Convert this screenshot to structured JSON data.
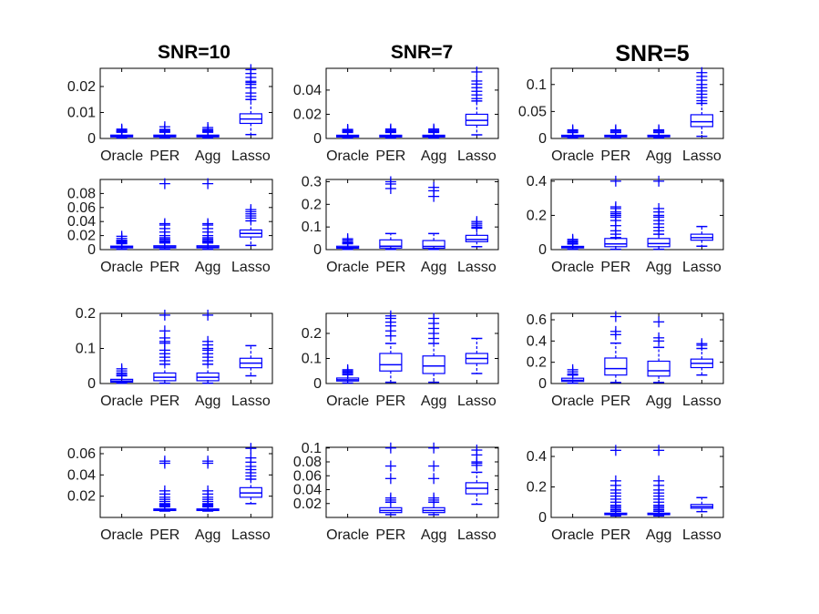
{
  "column_titles": [
    "SNR=10",
    "SNR=7",
    "SNR=5"
  ],
  "colors": {
    "box": "#0000ff",
    "axis": "#000000"
  },
  "chart_data": {
    "type": "box",
    "layout": "4x3 grid",
    "categories": [
      "Oracle",
      "PER",
      "Agg",
      "Lasso"
    ],
    "panels": [
      {
        "row": 0,
        "col": 0,
        "ylim": [
          0,
          0.027
        ],
        "yticks": [
          0,
          0.01,
          0.02
        ],
        "ytick_labels": [
          "0",
          "0.01",
          "0.02"
        ],
        "boxes": [
          {
            "q1": 0.0006,
            "median": 0.0009,
            "q3": 0.0013,
            "wlo": 0.0002,
            "whi": 0.0024,
            "outliers": [
              0.0026,
              0.0029,
              0.0032,
              0.0036
            ]
          },
          {
            "q1": 0.0006,
            "median": 0.0009,
            "q3": 0.0013,
            "wlo": 0.0002,
            "whi": 0.0024,
            "outliers": [
              0.0027,
              0.0031,
              0.0035,
              0.0045
            ]
          },
          {
            "q1": 0.0006,
            "median": 0.0009,
            "q3": 0.0013,
            "wlo": 0.0002,
            "whi": 0.0024,
            "outliers": [
              0.0027,
              0.0031,
              0.0035,
              0.0042
            ]
          },
          {
            "q1": 0.0058,
            "median": 0.0075,
            "q3": 0.0095,
            "wlo": 0.0015,
            "whi": 0.015,
            "outliers": [
              0.0162,
              0.0175,
              0.0195,
              0.0208,
              0.0215,
              0.022,
              0.0235,
              0.025,
              0.0265
            ]
          }
        ]
      },
      {
        "row": 0,
        "col": 1,
        "ylim": [
          0,
          0.058
        ],
        "yticks": [
          0,
          0.02,
          0.04
        ],
        "ytick_labels": [
          "0",
          "0.02",
          "0.04"
        ],
        "boxes": [
          {
            "q1": 0.0012,
            "median": 0.0018,
            "q3": 0.0027,
            "wlo": 0.0004,
            "whi": 0.005,
            "outliers": [
              0.0056,
              0.0062,
              0.0068,
              0.0075
            ]
          },
          {
            "q1": 0.0012,
            "median": 0.0018,
            "q3": 0.0027,
            "wlo": 0.0004,
            "whi": 0.005,
            "outliers": [
              0.0056,
              0.0062,
              0.0068,
              0.0078
            ]
          },
          {
            "q1": 0.0012,
            "median": 0.0018,
            "q3": 0.0027,
            "wlo": 0.0004,
            "whi": 0.005,
            "outliers": [
              0.0056,
              0.0062,
              0.0068,
              0.0078
            ]
          },
          {
            "q1": 0.011,
            "median": 0.015,
            "q3": 0.02,
            "wlo": 0.003,
            "whi": 0.031,
            "outliers": [
              0.033,
              0.036,
              0.039,
              0.042,
              0.045,
              0.0475,
              0.055
            ]
          }
        ]
      },
      {
        "row": 0,
        "col": 2,
        "ylim": [
          0,
          0.13
        ],
        "yticks": [
          0,
          0.05,
          0.1
        ],
        "ytick_labels": [
          "0",
          "0.05",
          "0.1"
        ],
        "boxes": [
          {
            "q1": 0.003,
            "median": 0.004,
            "q3": 0.006,
            "wlo": 0.001,
            "whi": 0.011,
            "outliers": [
              0.012,
              0.014,
              0.016
            ]
          },
          {
            "q1": 0.003,
            "median": 0.004,
            "q3": 0.006,
            "wlo": 0.001,
            "whi": 0.011,
            "outliers": [
              0.012,
              0.014,
              0.016
            ]
          },
          {
            "q1": 0.003,
            "median": 0.004,
            "q3": 0.006,
            "wlo": 0.001,
            "whi": 0.011,
            "outliers": [
              0.012,
              0.014,
              0.016
            ]
          },
          {
            "q1": 0.022,
            "median": 0.031,
            "q3": 0.044,
            "wlo": 0.004,
            "whi": 0.065,
            "outliers": [
              0.07,
              0.076,
              0.082,
              0.088,
              0.094,
              0.1,
              0.108,
              0.115,
              0.122
            ]
          }
        ]
      },
      {
        "row": 1,
        "col": 0,
        "ylim": [
          0,
          0.1
        ],
        "yticks": [
          0,
          0.02,
          0.04,
          0.06,
          0.08
        ],
        "ytick_labels": [
          "0",
          "0.02",
          "0.04",
          "0.06",
          "0.08"
        ],
        "boxes": [
          {
            "q1": 0.0025,
            "median": 0.0035,
            "q3": 0.005,
            "wlo": 0.0005,
            "whi": 0.0085,
            "outliers": [
              0.0095,
              0.0105,
              0.0115,
              0.0125,
              0.0135,
              0.016,
              0.019
            ]
          },
          {
            "q1": 0.0025,
            "median": 0.0037,
            "q3": 0.0055,
            "wlo": 0.0005,
            "whi": 0.0095,
            "outliers": [
              0.011,
              0.012,
              0.013,
              0.015,
              0.017,
              0.02,
              0.025,
              0.03,
              0.035,
              0.037,
              0.094
            ]
          },
          {
            "q1": 0.0025,
            "median": 0.0037,
            "q3": 0.0055,
            "wlo": 0.0005,
            "whi": 0.0095,
            "outliers": [
              0.011,
              0.012,
              0.013,
              0.015,
              0.017,
              0.02,
              0.025,
              0.03,
              0.035,
              0.037,
              0.094
            ]
          },
          {
            "q1": 0.018,
            "median": 0.023,
            "q3": 0.028,
            "wlo": 0.006,
            "whi": 0.041,
            "outliers": [
              0.045,
              0.048,
              0.051,
              0.054,
              0.057
            ]
          }
        ]
      },
      {
        "row": 1,
        "col": 1,
        "ylim": [
          0,
          0.31
        ],
        "yticks": [
          0,
          0.1,
          0.2,
          0.3
        ],
        "ytick_labels": [
          "0",
          "0.1",
          "0.2",
          "0.3"
        ],
        "boxes": [
          {
            "q1": 0.006,
            "median": 0.009,
            "q3": 0.015,
            "wlo": 0.001,
            "whi": 0.026,
            "outliers": [
              0.03,
              0.035,
              0.042,
              0.048
            ]
          },
          {
            "q1": 0.007,
            "median": 0.015,
            "q3": 0.043,
            "wlo": 0.001,
            "whi": 0.071,
            "outliers": [
              0.27,
              0.29,
              0.3
            ]
          },
          {
            "q1": 0.006,
            "median": 0.014,
            "q3": 0.04,
            "wlo": 0.001,
            "whi": 0.071,
            "outliers": [
              0.235,
              0.26,
              0.275
            ]
          },
          {
            "q1": 0.035,
            "median": 0.045,
            "q3": 0.063,
            "wlo": 0.013,
            "whi": 0.095,
            "outliers": [
              0.1,
              0.108,
              0.116,
              0.124
            ]
          }
        ]
      },
      {
        "row": 1,
        "col": 2,
        "ylim": [
          0,
          0.41
        ],
        "yticks": [
          0,
          0.2,
          0.4
        ],
        "ytick_labels": [
          "0",
          "0.2",
          "0.4"
        ],
        "boxes": [
          {
            "q1": 0.01,
            "median": 0.013,
            "q3": 0.019,
            "wlo": 0.002,
            "whi": 0.033,
            "outliers": [
              0.038,
              0.045,
              0.052,
              0.06
            ]
          },
          {
            "q1": 0.017,
            "median": 0.033,
            "q3": 0.065,
            "wlo": 0.002,
            "whi": 0.07,
            "outliers": [
              0.09,
              0.11,
              0.14,
              0.17,
              0.19,
              0.2,
              0.21,
              0.22,
              0.24,
              0.25,
              0.4
            ]
          },
          {
            "q1": 0.017,
            "median": 0.035,
            "q3": 0.065,
            "wlo": 0.002,
            "whi": 0.09,
            "outliers": [
              0.11,
              0.13,
              0.15,
              0.17,
              0.19,
              0.2,
              0.22,
              0.24,
              0.4
            ]
          },
          {
            "q1": 0.055,
            "median": 0.07,
            "q3": 0.09,
            "wlo": 0.02,
            "whi": 0.135,
            "outliers": []
          }
        ]
      },
      {
        "row": 2,
        "col": 0,
        "ylim": [
          0,
          0.2
        ],
        "yticks": [
          0,
          0.1,
          0.2
        ],
        "ytick_labels": [
          "0",
          "0.1",
          "0.2"
        ],
        "boxes": [
          {
            "q1": 0.004,
            "median": 0.007,
            "q3": 0.012,
            "wlo": 0.001,
            "whi": 0.022,
            "outliers": [
              0.026,
              0.03,
              0.036,
              0.042
            ]
          },
          {
            "q1": 0.008,
            "median": 0.018,
            "q3": 0.03,
            "wlo": 0.001,
            "whi": 0.055,
            "outliers": [
              0.065,
              0.075,
              0.085,
              0.095,
              0.115,
              0.12,
              0.13,
              0.15,
              0.195
            ]
          },
          {
            "q1": 0.008,
            "median": 0.018,
            "q3": 0.03,
            "wlo": 0.001,
            "whi": 0.055,
            "outliers": [
              0.065,
              0.075,
              0.085,
              0.095,
              0.1,
              0.11,
              0.12,
              0.195
            ]
          },
          {
            "q1": 0.045,
            "median": 0.058,
            "q3": 0.072,
            "wlo": 0.022,
            "whi": 0.108,
            "outliers": []
          }
        ]
      },
      {
        "row": 2,
        "col": 1,
        "ylim": [
          0,
          0.28
        ],
        "yticks": [
          0,
          0.1,
          0.2
        ],
        "ytick_labels": [
          "0",
          "0.1",
          "0.2"
        ],
        "boxes": [
          {
            "q1": 0.01,
            "median": 0.015,
            "q3": 0.022,
            "wlo": 0.002,
            "whi": 0.035,
            "outliers": [
              0.04,
              0.045,
              0.05,
              0.055
            ]
          },
          {
            "q1": 0.05,
            "median": 0.075,
            "q3": 0.12,
            "wlo": 0.005,
            "whi": 0.16,
            "outliers": [
              0.19,
              0.21,
              0.23,
              0.245,
              0.26,
              0.27
            ]
          },
          {
            "q1": 0.04,
            "median": 0.07,
            "q3": 0.11,
            "wlo": 0.005,
            "whi": 0.16,
            "outliers": [
              0.18,
              0.2,
              0.22,
              0.24,
              0.26
            ]
          },
          {
            "q1": 0.08,
            "median": 0.1,
            "q3": 0.12,
            "wlo": 0.04,
            "whi": 0.18,
            "outliers": []
          }
        ]
      },
      {
        "row": 2,
        "col": 2,
        "ylim": [
          0,
          0.66
        ],
        "yticks": [
          0,
          0.2,
          0.4,
          0.6
        ],
        "ytick_labels": [
          "0",
          "0.2",
          "0.4",
          "0.6"
        ],
        "boxes": [
          {
            "q1": 0.02,
            "median": 0.03,
            "q3": 0.05,
            "wlo": 0.003,
            "whi": 0.08,
            "outliers": [
              0.09,
              0.11,
              0.13
            ]
          },
          {
            "q1": 0.08,
            "median": 0.14,
            "q3": 0.24,
            "wlo": 0.01,
            "whi": 0.38,
            "outliers": [
              0.46,
              0.49,
              0.63
            ]
          },
          {
            "q1": 0.07,
            "median": 0.12,
            "q3": 0.21,
            "wlo": 0.01,
            "whi": 0.34,
            "outliers": [
              0.4,
              0.43,
              0.58
            ]
          },
          {
            "q1": 0.15,
            "median": 0.19,
            "q3": 0.23,
            "wlo": 0.08,
            "whi": 0.33,
            "outliers": [
              0.36,
              0.375
            ]
          }
        ]
      },
      {
        "row": 3,
        "col": 0,
        "ylim": [
          0,
          0.066
        ],
        "yticks": [
          0.02,
          0.04,
          0.06
        ],
        "ytick_labels": [
          "0.02",
          "0.04",
          "0.06"
        ],
        "boxes": [
          null,
          {
            "q1": 0.0065,
            "median": 0.007,
            "q3": 0.008,
            "wlo": 0.006,
            "whi": 0.01,
            "outliers": [
              0.011,
              0.012,
              0.013,
              0.015,
              0.017,
              0.019,
              0.022,
              0.025,
              0.051,
              0.053
            ]
          },
          {
            "q1": 0.0065,
            "median": 0.007,
            "q3": 0.008,
            "wlo": 0.006,
            "whi": 0.01,
            "outliers": [
              0.011,
              0.012,
              0.013,
              0.015,
              0.017,
              0.019,
              0.022,
              0.025,
              0.051,
              0.053
            ]
          },
          {
            "q1": 0.019,
            "median": 0.023,
            "q3": 0.028,
            "wlo": 0.013,
            "whi": 0.036,
            "outliers": [
              0.039,
              0.042,
              0.045,
              0.048,
              0.052,
              0.056,
              0.065
            ]
          }
        ]
      },
      {
        "row": 3,
        "col": 1,
        "ylim": [
          0,
          0.101
        ],
        "yticks": [
          0.02,
          0.04,
          0.06,
          0.08,
          0.1
        ],
        "ytick_labels": [
          "0.02",
          "0.04",
          "0.06",
          "0.08",
          "0.1"
        ],
        "boxes": [
          null,
          {
            "q1": 0.007,
            "median": 0.01,
            "q3": 0.014,
            "wlo": 0.004,
            "whi": 0.022,
            "outliers": [
              0.025,
              0.028,
              0.056,
              0.074,
              0.1
            ]
          },
          {
            "q1": 0.007,
            "median": 0.01,
            "q3": 0.014,
            "wlo": 0.004,
            "whi": 0.022,
            "outliers": [
              0.025,
              0.028,
              0.056,
              0.074,
              0.1
            ]
          },
          {
            "q1": 0.034,
            "median": 0.042,
            "q3": 0.05,
            "wlo": 0.019,
            "whi": 0.065,
            "outliers": [
              0.075,
              0.078,
              0.08,
              0.09,
              0.097
            ]
          }
        ]
      },
      {
        "row": 3,
        "col": 2,
        "ylim": [
          0,
          0.46
        ],
        "yticks": [
          0,
          0.2,
          0.4
        ],
        "ytick_labels": [
          "0",
          "0.2",
          "0.4"
        ],
        "boxes": [
          null,
          {
            "q1": 0.018,
            "median": 0.022,
            "q3": 0.028,
            "wlo": 0.01,
            "whi": 0.04,
            "outliers": [
              0.05,
              0.06,
              0.07,
              0.08,
              0.1,
              0.12,
              0.14,
              0.16,
              0.18,
              0.21,
              0.24,
              0.44
            ]
          },
          {
            "q1": 0.018,
            "median": 0.022,
            "q3": 0.028,
            "wlo": 0.01,
            "whi": 0.04,
            "outliers": [
              0.05,
              0.06,
              0.07,
              0.08,
              0.1,
              0.12,
              0.14,
              0.16,
              0.18,
              0.21,
              0.24,
              0.44
            ]
          },
          {
            "q1": 0.06,
            "median": 0.07,
            "q3": 0.085,
            "wlo": 0.038,
            "whi": 0.13,
            "outliers": []
          }
        ]
      }
    ]
  }
}
